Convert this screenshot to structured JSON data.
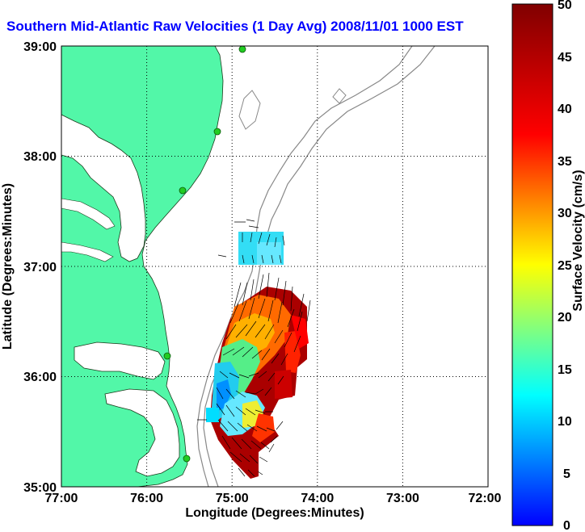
{
  "title": "Southern Mid-Atlantic Raw Velocities (1 Day Avg) 2008/11/01 1000 EST",
  "axes": {
    "xlabel": "Longitude (Degrees:Minutes)",
    "ylabel": "Latitude (Degrees:Minutes)",
    "x_ticks": [
      "77:00",
      "76:00",
      "75:00",
      "74:00",
      "73:00",
      "72:00"
    ],
    "y_ticks": [
      "39:00",
      "38:00",
      "37:00",
      "36:00",
      "35:00"
    ],
    "x_values": [
      -77,
      -76,
      -75,
      -74,
      -73,
      -72
    ],
    "y_values": [
      39,
      38,
      37,
      36,
      35
    ],
    "xlim": [
      -77,
      -72
    ],
    "ylim": [
      35,
      39
    ],
    "grid": true
  },
  "colorbar": {
    "label": "Surface Velocity (cm/s)",
    "ticks": [
      "50",
      "45",
      "40",
      "35",
      "30",
      "25",
      "20",
      "15",
      "10",
      "5",
      "0"
    ],
    "min": 0,
    "max": 50,
    "colormap": "jet"
  },
  "colors": {
    "land": "#52f7a8",
    "ocean": "#ffffff",
    "title": "#0000ff",
    "bathymetry": "#888888",
    "station": "#22cc22"
  },
  "chart_data": {
    "type": "heatmap",
    "description_units": "longitude, latitude in degrees; speed in cm/s",
    "stations": [
      {
        "lon": -74.9,
        "lat": 38.97
      },
      {
        "lon": -75.08,
        "lat": 38.22
      },
      {
        "lon": -75.47,
        "lat": 37.66
      },
      {
        "lon": -75.7,
        "lat": 36.2
      },
      {
        "lon": -75.45,
        "lat": 35.25
      }
    ],
    "velocity_region": {
      "lon_range": [
        -75.15,
        -74.15
      ],
      "lat_range": [
        35.08,
        36.6
      ],
      "north_patch": {
        "lon_range": [
          -74.75,
          -74.4
        ],
        "lat_range": [
          37.0,
          37.3
        ],
        "speed": 9
      }
    }
  }
}
